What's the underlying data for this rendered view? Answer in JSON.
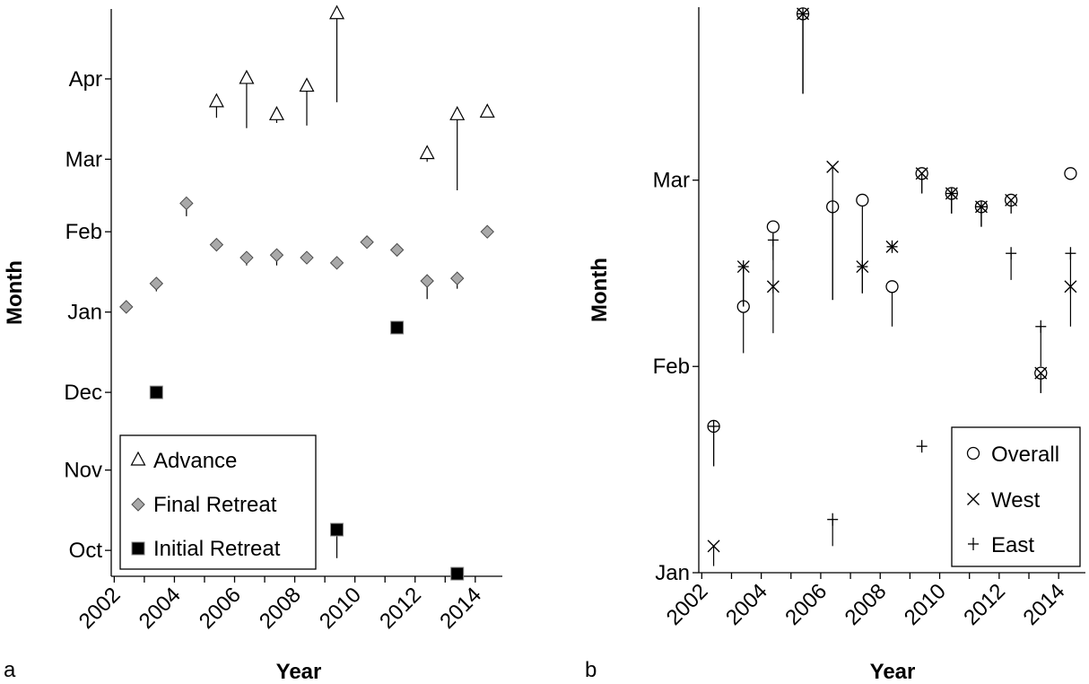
{
  "panels": [
    {
      "label": "a",
      "xlabel": "Year",
      "ylabel": "Month"
    },
    {
      "label": "b",
      "xlabel": "Year",
      "ylabel": "Month"
    }
  ],
  "chart_data": [
    {
      "type": "scatter",
      "panel": "a",
      "xlabel": "Year",
      "ylabel": "Month",
      "xlim": [
        2001.9,
        2014.9
      ],
      "xticks": [
        "2002",
        "2004",
        "2006",
        "2008",
        "2010",
        "2012",
        "2014"
      ],
      "ylim": [
        "Sep 21",
        "Apr 28"
      ],
      "yticks": [
        "Oct",
        "Nov",
        "Dec",
        "Jan",
        "Feb",
        "Mar",
        "Apr"
      ],
      "legend_position": "bottom-left",
      "grid": false,
      "error_bars": "vertical lines extending from each marker",
      "series": [
        {
          "name": "Advance",
          "marker": "open-triangle",
          "points": [
            {
              "x": 2005.4,
              "y": "Mar 23",
              "bar_to": "Mar 17"
            },
            {
              "x": 2006.4,
              "y": "Apr 1",
              "bar_to": "Mar 13"
            },
            {
              "x": 2007.4,
              "y": "Mar 18",
              "bar_to": "Mar 15"
            },
            {
              "x": 2008.4,
              "y": "Mar 29",
              "bar_to": "Mar 14"
            },
            {
              "x": 2009.4,
              "y": "Apr 26",
              "bar_to": "Mar 23"
            },
            {
              "x": 2012.4,
              "y": "Mar 3",
              "bar_to": "Feb 28"
            },
            {
              "x": 2013.4,
              "y": "Mar 18",
              "bar_to": "Feb 17"
            },
            {
              "x": 2014.4,
              "y": "Mar 19",
              "bar_to": "Mar 18"
            }
          ]
        },
        {
          "name": "Final Retreat",
          "marker": "gray-diamond",
          "points": [
            {
              "x": 2002.4,
              "y": "Jan 3",
              "bar_to": "Jan 1"
            },
            {
              "x": 2003.4,
              "y": "Jan 12",
              "bar_to": "Jan 9"
            },
            {
              "x": 2004.4,
              "y": "Feb 12",
              "bar_to": "Feb 7"
            },
            {
              "x": 2005.4,
              "y": "Jan 27",
              "bar_to": "Jan 27"
            },
            {
              "x": 2006.4,
              "y": "Jan 22",
              "bar_to": "Jan 19"
            },
            {
              "x": 2007.4,
              "y": "Jan 23",
              "bar_to": "Jan 19"
            },
            {
              "x": 2008.4,
              "y": "Jan 22",
              "bar_to": "Jan 22"
            },
            {
              "x": 2009.4,
              "y": "Jan 20",
              "bar_to": "Jan 20"
            },
            {
              "x": 2010.4,
              "y": "Jan 28",
              "bar_to": "Jan 26"
            },
            {
              "x": 2011.4,
              "y": "Jan 25",
              "bar_to": "Jan 24"
            },
            {
              "x": 2012.4,
              "y": "Jan 13",
              "bar_to": "Jan 6"
            },
            {
              "x": 2013.4,
              "y": "Jan 14",
              "bar_to": "Jan 10"
            },
            {
              "x": 2014.4,
              "y": "Feb 1",
              "bar_to": "Feb 1"
            }
          ]
        },
        {
          "name": "Initial Retreat",
          "marker": "filled-square",
          "points": [
            {
              "x": 2003.4,
              "y": "Dec 1",
              "bar_to": "Dec 1"
            },
            {
              "x": 2009.4,
              "y": "Oct 9",
              "bar_to": "Sep 28"
            },
            {
              "x": 2011.4,
              "y": "Dec 26",
              "bar_to": "Dec 26"
            },
            {
              "x": 2013.4,
              "y": "Sep 22",
              "bar_to": "Sep 22"
            }
          ]
        }
      ]
    },
    {
      "type": "scatter",
      "panel": "b",
      "xlabel": "Year",
      "ylabel": "Month",
      "xlim": [
        2001.9,
        2014.9
      ],
      "xticks": [
        "2002",
        "2004",
        "2006",
        "2008",
        "2010",
        "2012",
        "2014"
      ],
      "ylim": [
        "Jan 1",
        "Mar 27"
      ],
      "yticks": [
        "Jan",
        "Feb",
        "Mar"
      ],
      "legend_position": "bottom-right",
      "grid": false,
      "error_bars": "vertical lines extending from each marker",
      "series": [
        {
          "name": "Overall",
          "marker": "open-circle",
          "points": [
            {
              "x": 2002.4,
              "y": "Jan 23",
              "bar_to": "Jan 17"
            },
            {
              "x": 2003.4,
              "y": "Feb 10",
              "bar_to": "Feb 3"
            },
            {
              "x": 2004.4,
              "y": "Feb 22",
              "bar_to": "Feb 12"
            },
            {
              "x": 2005.4,
              "y": "Mar 26",
              "bar_to": "Mar 14"
            },
            {
              "x": 2006.4,
              "y": "Feb 25",
              "bar_to": "Feb 11"
            },
            {
              "x": 2007.4,
              "y": "Feb 26",
              "bar_to": "Feb 16"
            },
            {
              "x": 2008.4,
              "y": "Feb 13",
              "bar_to": "Feb 7"
            },
            {
              "x": 2009.4,
              "y": "Mar 2",
              "bar_to": "Feb 27"
            },
            {
              "x": 2010.4,
              "y": "Feb 27",
              "bar_to": "Feb 24"
            },
            {
              "x": 2011.4,
              "y": "Feb 25",
              "bar_to": "Feb 22"
            },
            {
              "x": 2012.4,
              "y": "Feb 26",
              "bar_to": "Feb 24"
            },
            {
              "x": 2013.4,
              "y": "Jan 31",
              "bar_to": "Jan 28"
            },
            {
              "x": 2014.4,
              "y": "Mar 2",
              "bar_to": "Mar 2"
            }
          ]
        },
        {
          "name": "West",
          "marker": "x-cross",
          "points": [
            {
              "x": 2002.4,
              "y": "Jan 5",
              "bar_to": "Jan 2"
            },
            {
              "x": 2003.4,
              "y": "Feb 16",
              "bar_to": "Feb 10"
            },
            {
              "x": 2004.4,
              "y": "Feb 13",
              "bar_to": "Feb 6"
            },
            {
              "x": 2005.4,
              "y": "Mar 26",
              "bar_to": "Mar 14"
            },
            {
              "x": 2006.4,
              "y": "Mar 3",
              "bar_to": "Feb 11"
            },
            {
              "x": 2007.4,
              "y": "Feb 16",
              "bar_to": "Feb 12"
            },
            {
              "x": 2008.4,
              "y": "Feb 19",
              "bar_to": "Feb 19"
            },
            {
              "x": 2009.4,
              "y": "Mar 2",
              "bar_to": "Feb 27"
            },
            {
              "x": 2010.4,
              "y": "Feb 27",
              "bar_to": "Feb 24"
            },
            {
              "x": 2011.4,
              "y": "Feb 25",
              "bar_to": "Feb 22"
            },
            {
              "x": 2012.4,
              "y": "Feb 26",
              "bar_to": "Feb 24"
            },
            {
              "x": 2013.4,
              "y": "Jan 31",
              "bar_to": "Jan 28"
            },
            {
              "x": 2014.4,
              "y": "Feb 13",
              "bar_to": "Feb 7"
            }
          ]
        },
        {
          "name": "East",
          "marker": "plus",
          "points": [
            {
              "x": 2002.4,
              "y": "Jan 23",
              "bar_to": "Jan 17"
            },
            {
              "x": 2003.4,
              "y": "Feb 16",
              "bar_to": "Feb 10"
            },
            {
              "x": 2004.4,
              "y": "Feb 20",
              "bar_to": "Feb 17"
            },
            {
              "x": 2005.4,
              "y": "Mar 26",
              "bar_to": "Mar 14"
            },
            {
              "x": 2006.4,
              "y": "Jan 9",
              "bar_to": "Jan 5"
            },
            {
              "x": 2007.4,
              "y": "Feb 16",
              "bar_to": "Feb 12"
            },
            {
              "x": 2008.4,
              "y": "Feb 19",
              "bar_to": "Feb 19"
            },
            {
              "x": 2009.4,
              "y": "Jan 20",
              "bar_to": "Jan 20"
            },
            {
              "x": 2010.4,
              "y": "Feb 27",
              "bar_to": "Feb 24"
            },
            {
              "x": 2011.4,
              "y": "Feb 25",
              "bar_to": "Feb 22"
            },
            {
              "x": 2012.4,
              "y": "Feb 18",
              "bar_to": "Feb 14"
            },
            {
              "x": 2013.4,
              "y": "Feb 7",
              "bar_to": "Feb 1"
            },
            {
              "x": 2014.4,
              "y": "Feb 18",
              "bar_to": "Feb 12"
            }
          ]
        }
      ]
    }
  ]
}
